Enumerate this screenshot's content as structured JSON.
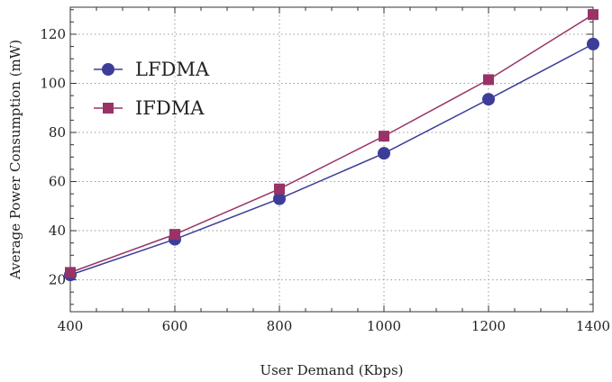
{
  "chart_data": {
    "type": "line",
    "title": "",
    "xlabel": "User Demand (Kbps)",
    "ylabel": "Average Power Consumption (mW)",
    "x": [
      400,
      600,
      800,
      1000,
      1200,
      1400
    ],
    "xlim": [
      400,
      1400
    ],
    "ylim": [
      7,
      131
    ],
    "xticks": [
      400,
      600,
      800,
      1000,
      1200,
      1400
    ],
    "yticks": [
      20,
      40,
      60,
      80,
      100,
      120
    ],
    "grid": true,
    "legend_position": "top-left",
    "series": [
      {
        "name": "LFDMA",
        "values": [
          22,
          36.5,
          53,
          71.5,
          93.5,
          116
        ],
        "color": "#3d3d99",
        "marker": "circle"
      },
      {
        "name": "IFDMA",
        "values": [
          23,
          38.5,
          57,
          78.5,
          101.5,
          128
        ],
        "color": "#993366",
        "marker": "square"
      }
    ]
  }
}
